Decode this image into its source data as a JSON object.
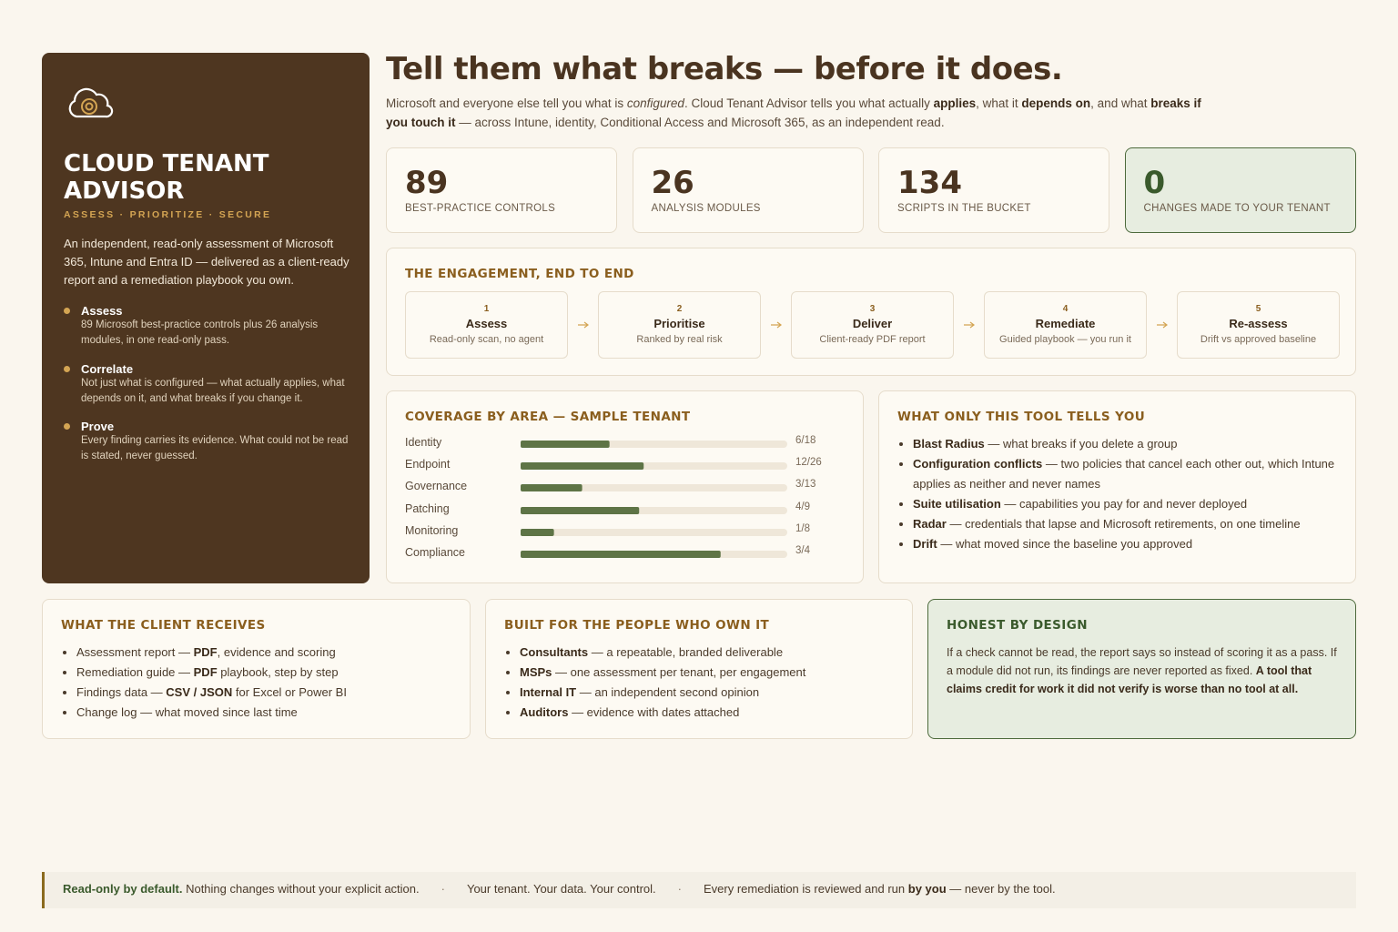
{
  "sidebar": {
    "brand": "CLOUD TENANT ADVISOR",
    "tagline": "ASSESS · PRIORITIZE · SECURE",
    "intro": "An independent, read-only assessment of Microsoft 365, Intune and Entra ID — delivered as a client-ready report and a remediation playbook you own.",
    "points": [
      {
        "title": "Assess",
        "text": "89 Microsoft best-practice controls plus 26 analysis modules, in one read-only pass."
      },
      {
        "title": "Correlate",
        "text": "Not just what is configured — what actually applies, what depends on it, and what breaks if you change it."
      },
      {
        "title": "Prove",
        "text": "Every finding carries its evidence. What could not be read is stated, never guessed."
      }
    ]
  },
  "header": {
    "title": "Tell them what breaks — before it does.",
    "lede": [
      {
        "text": "Microsoft and everyone else tell you what is "
      },
      {
        "text": "configured",
        "style": "em"
      },
      {
        "text": ". Cloud Tenant Advisor tells you what actually "
      },
      {
        "text": "applies",
        "style": "bold"
      },
      {
        "text": ", what it "
      },
      {
        "text": "depends on",
        "style": "bold"
      },
      {
        "text": ", and what "
      },
      {
        "text": "breaks if you touch it",
        "style": "bold"
      },
      {
        "text": " — across Intune, identity, Conditional Access and Microsoft 365, as an independent read."
      }
    ]
  },
  "stats": [
    {
      "value": 89,
      "label": "BEST-PRACTICE CONTROLS"
    },
    {
      "value": 26,
      "label": "ANALYSIS MODULES"
    },
    {
      "value": 134,
      "label": "SCRIPTS IN THE BUCKET"
    },
    {
      "value": 0,
      "label": "CHANGES MADE TO YOUR TENANT",
      "highlight": true
    }
  ],
  "engagement": {
    "title": "THE ENGAGEMENT, END TO END",
    "steps": [
      {
        "number": 1,
        "name": "Assess",
        "note": "Read-only scan, no agent"
      },
      {
        "number": 2,
        "name": "Prioritise",
        "note": "Ranked by real risk"
      },
      {
        "number": 3,
        "name": "Deliver",
        "note": "Client-ready PDF report"
      },
      {
        "number": 4,
        "name": "Remediate",
        "note": "Guided playbook — you run it"
      },
      {
        "number": 5,
        "name": "Re-assess",
        "note": "Drift vs approved baseline"
      }
    ]
  },
  "coverage": {
    "title": "COVERAGE BY AREA — SAMPLE TENANT",
    "rows": [
      {
        "area": "Identity",
        "done": 6,
        "total": 18,
        "label": "6/18"
      },
      {
        "area": "Endpoint",
        "done": 12,
        "total": 26,
        "label": "12/26"
      },
      {
        "area": "Governance",
        "done": 3,
        "total": 13,
        "label": "3/13"
      },
      {
        "area": "Patching",
        "done": 4,
        "total": 9,
        "label": "4/9"
      },
      {
        "area": "Monitoring",
        "done": 1,
        "total": 8,
        "label": "1/8"
      },
      {
        "area": "Compliance",
        "done": 3,
        "total": 4,
        "label": "3/4"
      }
    ]
  },
  "unique": {
    "title": "WHAT ONLY THIS TOOL TELLS YOU",
    "items": [
      [
        {
          "text": "Blast Radius",
          "style": "bold"
        },
        {
          "text": " — what breaks if you delete a group"
        }
      ],
      [
        {
          "text": "Configuration conflicts",
          "style": "bold"
        },
        {
          "text": " — two policies that cancel each other out, which Intune applies as neither and never names"
        }
      ],
      [
        {
          "text": "Suite utilisation",
          "style": "bold"
        },
        {
          "text": " — capabilities you pay for and never deployed"
        }
      ],
      [
        {
          "text": "Radar",
          "style": "bold"
        },
        {
          "text": " — credentials that lapse and Microsoft retirements, on one timeline"
        }
      ],
      [
        {
          "text": "Drift",
          "style": "bold"
        },
        {
          "text": " — what moved since the baseline you approved"
        }
      ]
    ]
  },
  "receives": {
    "title": "WHAT THE CLIENT RECEIVES",
    "items": [
      [
        {
          "text": "Assessment report — "
        },
        {
          "text": "PDF",
          "style": "bold"
        },
        {
          "text": ", evidence and scoring"
        }
      ],
      [
        {
          "text": "Remediation guide — "
        },
        {
          "text": "PDF",
          "style": "bold"
        },
        {
          "text": " playbook, step by step"
        }
      ],
      [
        {
          "text": "Findings data — "
        },
        {
          "text": "CSV / JSON",
          "style": "bold"
        },
        {
          "text": " for Excel or Power BI"
        }
      ],
      [
        {
          "text": "Change log — what moved since last time"
        }
      ]
    ]
  },
  "audience": {
    "title": "BUILT FOR THE PEOPLE WHO OWN IT",
    "items": [
      [
        {
          "text": "Consultants",
          "style": "bold"
        },
        {
          "text": " — a repeatable, branded deliverable"
        }
      ],
      [
        {
          "text": "MSPs",
          "style": "bold"
        },
        {
          "text": " — one assessment per tenant, per engagement"
        }
      ],
      [
        {
          "text": "Internal IT",
          "style": "bold"
        },
        {
          "text": " — an independent second opinion"
        }
      ],
      [
        {
          "text": "Auditors",
          "style": "bold"
        },
        {
          "text": " — evidence with dates attached"
        }
      ]
    ]
  },
  "honest": {
    "title": "HONEST BY DESIGN",
    "text": [
      {
        "text": "If a check cannot be read, the report says so instead of scoring it as a pass. If a module did not run, its findings are never reported as fixed. "
      },
      {
        "text": "A tool that claims credit for work it did not verify is worse than no tool at all.",
        "style": "bold"
      }
    ]
  },
  "footer": {
    "separator": "·",
    "parts": [
      [
        {
          "text": "Read-only by default.",
          "style": "bold-green"
        },
        {
          "text": " Nothing changes without your explicit action."
        }
      ],
      [
        {
          "text": "Your tenant. Your data. Your control."
        }
      ],
      [
        {
          "text": "Every remediation is reviewed and run "
        },
        {
          "text": "by you",
          "style": "bold"
        },
        {
          "text": " — never by the tool."
        }
      ]
    ]
  }
}
